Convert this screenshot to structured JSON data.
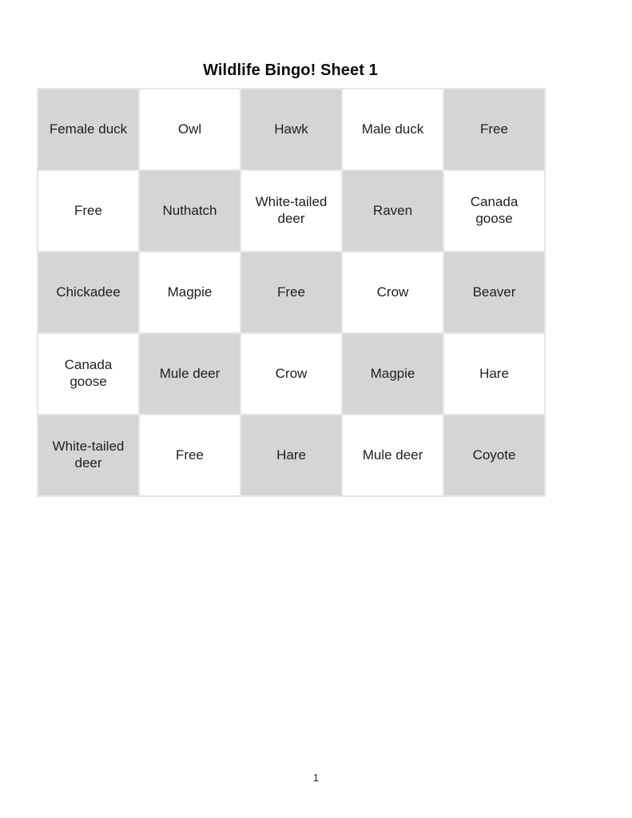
{
  "page": {
    "title": "Wildlife Bingo! Sheet 1",
    "page_number": "1"
  },
  "colors": {
    "shaded_cell": "#d5d5d5",
    "grid_line": "#e6e6e6",
    "cell_text": "#1f1f1f",
    "title_text": "#0c0c0c"
  },
  "bingo_grid": {
    "rows": 5,
    "cols": 5,
    "shading_pattern": "checkerboard, top-left cell shaded, alternating",
    "cells": [
      [
        "Female duck",
        "Owl",
        "Hawk",
        "Male duck",
        "Free"
      ],
      [
        "Free",
        "Nuthatch",
        "White-tailed deer",
        "Raven",
        "Canada goose"
      ],
      [
        "Chickadee",
        "Magpie",
        "Free",
        "Crow",
        "Beaver"
      ],
      [
        "Canada goose",
        "Mule deer",
        "Crow",
        "Magpie",
        "Hare"
      ],
      [
        "White-tailed deer",
        "Free",
        "Hare",
        "Mule deer",
        "Coyote"
      ]
    ]
  }
}
